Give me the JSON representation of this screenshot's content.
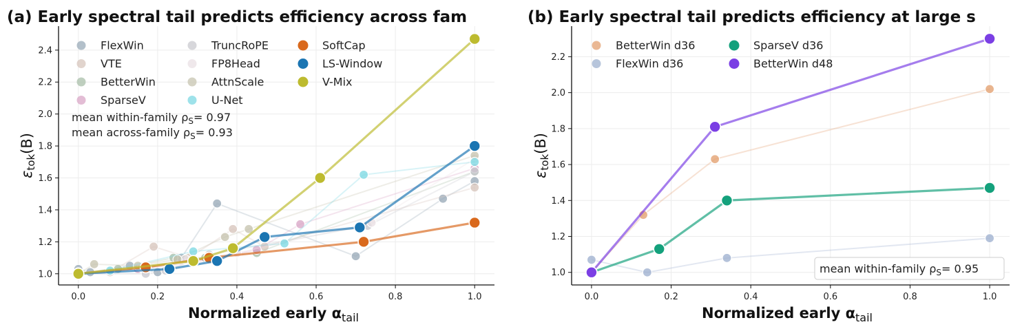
{
  "figure_title": "",
  "panels": [
    {
      "title": "(a) Early spectral tail predicts efficiency across fam",
      "xlabel": "Normalized early α",
      "xlabel_sub": "tail",
      "ylabel": "ε",
      "ylabel_sub": "tok",
      "ylabel_suffix": "(B)",
      "annotations": [
        "mean within-family ρ",
        "mean across-family ρ"
      ],
      "annotation_values": [
        "= 0.97",
        "= 0.93"
      ]
    },
    {
      "title": "(b) Early spectral tail predicts efficiency at large s",
      "xlabel": "Normalized early α",
      "xlabel_sub": "tail",
      "ylabel": "ε",
      "ylabel_sub": "tok",
      "ylabel_suffix": "(B)",
      "annotations": [
        "mean within-family ρ"
      ],
      "annotation_values": [
        "= 0.95"
      ]
    }
  ],
  "chart_data": [
    {
      "type": "line",
      "title": "(a) Early spectral tail predicts efficiency across fam",
      "xlabel": "Normalized early α_tail",
      "ylabel": "ε_tok(B)",
      "xlim": [
        -0.05,
        1.05
      ],
      "ylim": [
        0.93,
        2.55
      ],
      "xticks": [
        "0.0",
        "0.2",
        "0.4",
        "0.6",
        "0.8",
        "1.0"
      ],
      "yticks": [
        "1.0",
        "1.2",
        "1.4",
        "1.6",
        "1.8",
        "2.0",
        "2.2",
        "2.4"
      ],
      "grid": true,
      "legend_position": "top-left",
      "series": [
        {
          "name": "FlexWin",
          "color": "#9aabb8",
          "highlight": false,
          "x": [
            0.0,
            0.03,
            0.13,
            0.2,
            0.26,
            0.35,
            0.7,
            0.92,
            1.0
          ],
          "y": [
            1.03,
            1.01,
            1.05,
            1.01,
            1.1,
            1.44,
            1.11,
            1.47,
            1.58
          ]
        },
        {
          "name": "VTE",
          "color": "#d7c5bc",
          "highlight": false,
          "x": [
            0.0,
            0.08,
            0.19,
            0.28,
            0.39,
            0.47,
            1.0
          ],
          "y": [
            1.01,
            1.01,
            1.17,
            1.1,
            1.28,
            1.17,
            1.54
          ]
        },
        {
          "name": "BetterWin",
          "color": "#a9bfa9",
          "highlight": false,
          "x": [
            0.0,
            0.1,
            0.24,
            0.32,
            0.45,
            1.0
          ],
          "y": [
            1.0,
            1.03,
            1.1,
            1.1,
            1.13,
            1.64
          ]
        },
        {
          "name": "SparseV",
          "color": "#d9a7c7",
          "highlight": false,
          "x": [
            0.0,
            0.15,
            0.29,
            0.45,
            0.56,
            1.0
          ],
          "y": [
            1.0,
            1.03,
            1.07,
            1.15,
            1.31,
            1.66
          ]
        },
        {
          "name": "TruncRoPE",
          "color": "#c9c9cf",
          "highlight": false,
          "x": [
            0.0,
            0.17,
            0.22,
            0.33,
            0.73,
            1.0
          ],
          "y": [
            1.0,
            1.0,
            1.02,
            1.12,
            1.3,
            1.64
          ]
        },
        {
          "name": "FP8Head",
          "color": "#eae0e4",
          "highlight": false,
          "x": [
            0.0,
            0.16,
            0.27,
            0.4,
            0.74,
            1.0
          ],
          "y": [
            1.0,
            1.04,
            1.09,
            1.13,
            1.32,
            1.72
          ]
        },
        {
          "name": "AttnScale",
          "color": "#c7c4b0",
          "highlight": false,
          "x": [
            0.0,
            0.04,
            0.15,
            0.25,
            0.37,
            0.43,
            1.0
          ],
          "y": [
            1.0,
            1.06,
            1.05,
            1.09,
            1.23,
            1.28,
            1.74
          ]
        },
        {
          "name": "U-Net",
          "color": "#7dd8e3",
          "highlight": false,
          "x": [
            0.0,
            0.08,
            0.29,
            0.52,
            0.72,
            1.0
          ],
          "y": [
            1.0,
            1.02,
            1.14,
            1.19,
            1.62,
            1.7
          ]
        },
        {
          "name": "SoftCap",
          "color": "#d9691d",
          "highlight": true,
          "x": [
            0.0,
            0.17,
            0.33,
            0.72,
            1.0
          ],
          "y": [
            1.0,
            1.04,
            1.1,
            1.2,
            1.32
          ]
        },
        {
          "name": "LS-Window",
          "color": "#1b75b2",
          "highlight": true,
          "x": [
            0.0,
            0.23,
            0.35,
            0.47,
            0.71,
            1.0
          ],
          "y": [
            1.0,
            1.03,
            1.08,
            1.23,
            1.29,
            1.8
          ]
        },
        {
          "name": "V-Mix",
          "color": "#bdbb2f",
          "highlight": true,
          "x": [
            0.0,
            0.29,
            0.39,
            0.61,
            1.0
          ],
          "y": [
            1.0,
            1.08,
            1.16,
            1.6,
            2.47
          ]
        }
      ]
    },
    {
      "type": "line",
      "title": "(b) Early spectral tail predicts efficiency at large s",
      "xlabel": "Normalized early α_tail",
      "ylabel": "ε_tok(B)",
      "xlim": [
        -0.05,
        1.05
      ],
      "ylim": [
        0.93,
        2.37
      ],
      "xticks": [
        "0.0",
        "0.2",
        "0.4",
        "0.6",
        "0.8",
        "1.0"
      ],
      "yticks": [
        "1.0",
        "1.2",
        "1.4",
        "1.6",
        "1.8",
        "2.0",
        "2.2"
      ],
      "grid": true,
      "legend_position": "top-left",
      "series": [
        {
          "name": "BetterWin d36",
          "color": "#e3a070",
          "highlight": false,
          "x": [
            0.0,
            0.13,
            0.31,
            1.0
          ],
          "y": [
            1.0,
            1.32,
            1.63,
            2.02
          ]
        },
        {
          "name": "FlexWin d36",
          "color": "#9fb1cf",
          "highlight": false,
          "x": [
            0.0,
            0.14,
            0.34,
            1.0
          ],
          "y": [
            1.07,
            1.0,
            1.08,
            1.19
          ]
        },
        {
          "name": "SparseV d36",
          "color": "#14a17c",
          "highlight": true,
          "x": [
            0.0,
            0.17,
            0.34,
            1.0
          ],
          "y": [
            1.0,
            1.13,
            1.4,
            1.47
          ]
        },
        {
          "name": "BetterWin d48",
          "color": "#7b3fe4",
          "highlight": true,
          "x": [
            0.0,
            0.31,
            1.0
          ],
          "y": [
            1.0,
            1.81,
            2.3
          ]
        }
      ]
    }
  ]
}
